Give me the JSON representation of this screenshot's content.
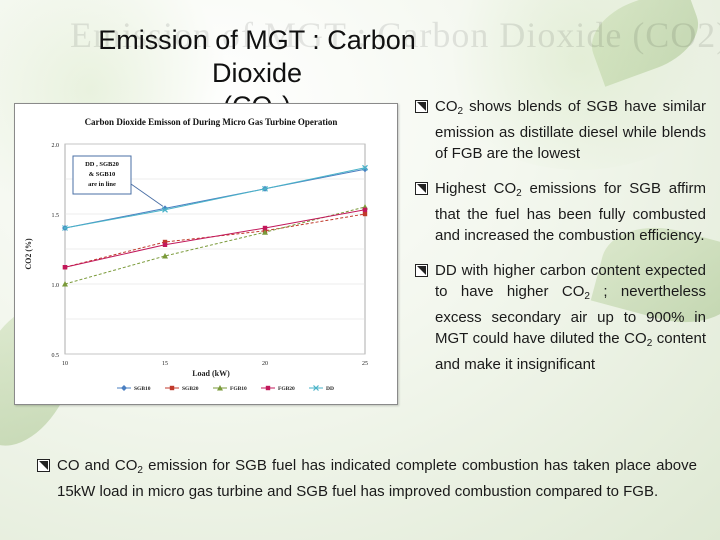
{
  "slide": {
    "ghost_title": "Emission of MGT : Carbon Dioxide (CO2)",
    "title_line1": "Emission of MGT : Carbon Dioxide",
    "title_line2_pre": "(CO",
    "title_line2_sub": "2",
    "title_line2_post": ")"
  },
  "bullets": [
    {
      "pre": "CO",
      "sub": "2",
      "post": " shows blends of SGB have similar emission as distillate diesel while blends of FGB are the lowest"
    },
    {
      "pre": "Highest CO",
      "sub": "2",
      "post": " emissions for SGB affirm that the fuel has been fully combusted and increased the combustion efficiency."
    },
    {
      "pre": "DD with higher carbon content expected to have higher CO",
      "sub": "2",
      "mid": " ; nevertheless excess secondary air up to 900% in MGT could have diluted the CO",
      "sub2": "2",
      "post": " content and make it insignificant"
    }
  ],
  "bottom_bullet": {
    "pre": "CO and CO",
    "sub": "2",
    "post": " emission for SGB fuel has indicated complete combustion has taken place above 15kW load in micro gas turbine and SGB fuel has improved combustion compared to FGB."
  },
  "chart_data": {
    "type": "line",
    "title": "Carbon Dioxide Emisson of  During Micro Gas Turbine Operation",
    "xlabel": "Load (kW)",
    "ylabel": "CO2 (%)",
    "x": [
      10,
      15,
      20,
      25
    ],
    "xticks": [
      "10",
      "15",
      "20",
      "25"
    ],
    "yticks": [
      "0.5",
      "1.0",
      "1.5",
      "2.0"
    ],
    "xlim": [
      10,
      25
    ],
    "ylim": [
      0.5,
      2.0
    ],
    "legend_position": "bottom",
    "annotation": {
      "lines": [
        "DD , SGB20",
        "& SGB10",
        "are in line"
      ]
    },
    "series": [
      {
        "name": "SGB10",
        "values": [
          1.4,
          1.54,
          1.68,
          1.82
        ],
        "color": "#4a7fc1",
        "marker": "diamond"
      },
      {
        "name": "SGB20",
        "values": [
          1.12,
          1.3,
          1.38,
          1.5
        ],
        "color": "#c0392b",
        "marker": "square"
      },
      {
        "name": "FGB10",
        "values": [
          1.0,
          1.2,
          1.37,
          1.55
        ],
        "color": "#7a9a3a",
        "marker": "triangle"
      },
      {
        "name": "FGB20",
        "values": [
          1.12,
          1.28,
          1.4,
          1.53
        ],
        "color": "#c2185b",
        "marker": "square"
      },
      {
        "name": "DD",
        "values": [
          1.4,
          1.53,
          1.68,
          1.83
        ],
        "color": "#4ab3c8",
        "marker": "x"
      }
    ]
  }
}
